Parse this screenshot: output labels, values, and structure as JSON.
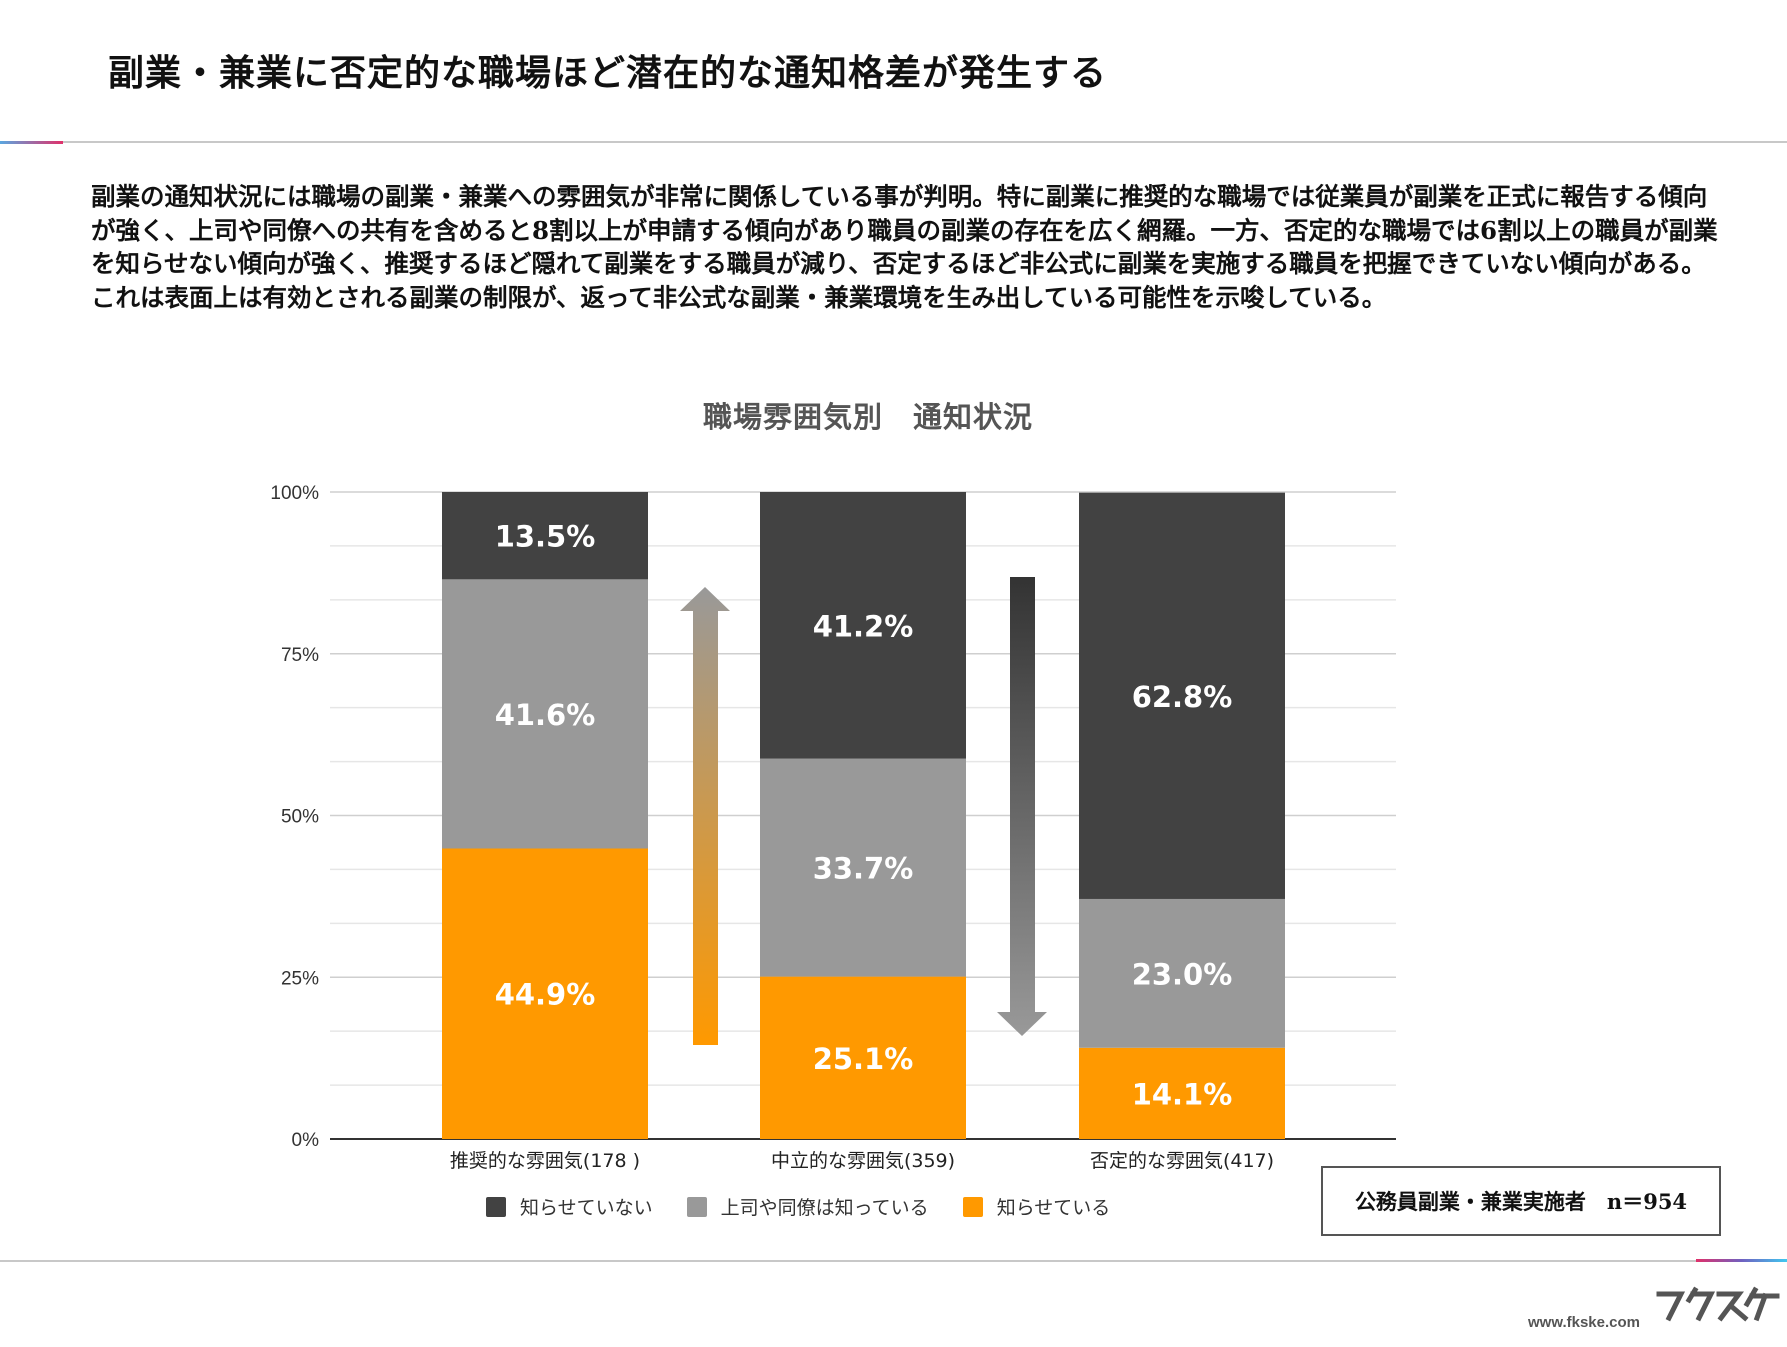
{
  "header": {
    "title": "副業・兼業に否定的な職場ほど潜在的な通知格差が発生する"
  },
  "description": [
    "副業の通知状況には職場の副業・兼業への雰囲気が非常に関係している事が判明。特に副業に推奨的な職場では従業員が副業を正式に報告する傾向が強く、上司や同僚への共有を含めると8割以上が申請する傾向があり職員の副業の存在を広く網羅。一方、否定的な職場では6割以上の職員が副業を知らせない傾向が強く、推奨するほど隠れて副業をする職員が減り、否定するほど非公式に副業を実施する職員を把握できていない傾向がある。",
    "これは表面上は有効とされる副業の制限が、返って非公式な副業・兼業環境を生み出している可能性を示唆している。"
  ],
  "chart_data": {
    "type": "bar",
    "stacked": true,
    "title": "職場雰囲気別　通知状況",
    "categories": [
      "推奨的な雰囲気(178 )",
      "中立的な雰囲気(359)",
      "否定的な雰囲気(417)"
    ],
    "series": [
      {
        "name": "知らせている",
        "color": "#FF9900",
        "values": [
          44.9,
          25.1,
          14.1
        ],
        "labels": [
          "44.9%",
          "25.1%",
          "14.1%"
        ]
      },
      {
        "name": "上司や同僚は知っている",
        "color": "#999999",
        "values": [
          41.6,
          33.7,
          23.0
        ],
        "labels": [
          "41.6%",
          "33.7%",
          "23.0%"
        ]
      },
      {
        "name": "知らせていない",
        "color": "#424242",
        "values": [
          13.5,
          41.2,
          62.8
        ],
        "labels": [
          "13.5%",
          "41.2%",
          "62.8%"
        ]
      }
    ],
    "legend_order": [
      "知らせていない",
      "上司や同僚は知っている",
      "知らせている"
    ],
    "ylim": [
      0,
      100
    ],
    "yticks": [
      0,
      25,
      50,
      75,
      100
    ],
    "ytick_labels": [
      "0%",
      "25%",
      "50%",
      "75%",
      "100%"
    ],
    "grid": true,
    "legend_position": "bottom",
    "annotations": [
      {
        "type": "arrow",
        "direction": "up",
        "between": "推奨的な雰囲気 / 中立的な雰囲気",
        "gradient": [
          "#FF9900",
          "#999999"
        ]
      },
      {
        "type": "arrow",
        "direction": "down",
        "between": "中立的な雰囲気 / 否定的な雰囲気",
        "gradient": [
          "#333333",
          "#999999"
        ]
      }
    ]
  },
  "sample_note": "公務員副業・兼業実施者　n＝954",
  "footer": {
    "url": "www.fkske.com",
    "logo_text": "フクスケ"
  }
}
